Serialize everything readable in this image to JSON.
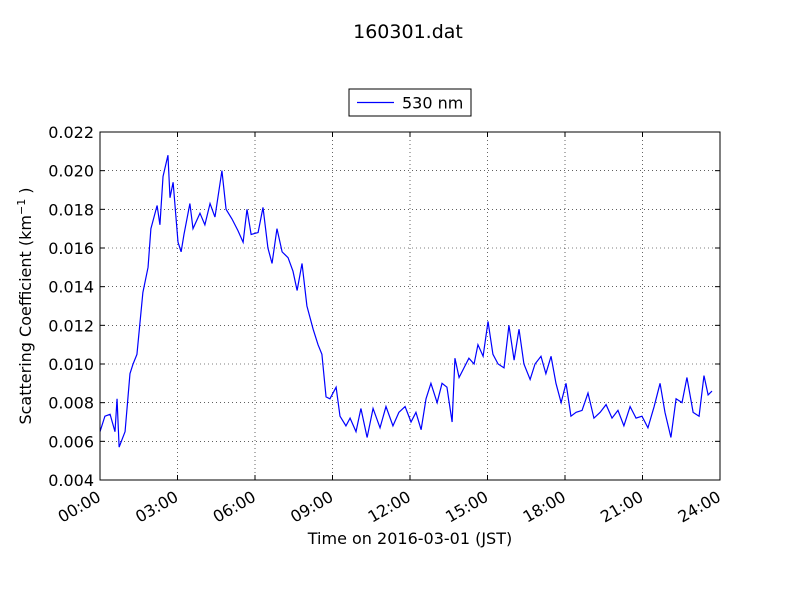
{
  "chart_data": {
    "type": "line",
    "title": "160301.dat",
    "xlabel": "Time on 2016-03-01 (JST)",
    "ylabel": {
      "text": "Scattering Coefficient (km",
      "superscript": "−1",
      "end": " )"
    },
    "x": [
      0,
      0.19,
      0.39,
      0.58,
      0.66,
      0.74,
      0.97,
      1.16,
      1.28,
      1.43,
      1.66,
      1.86,
      1.97,
      2.21,
      2.32,
      2.44,
      2.63,
      2.71,
      2.83,
      3.02,
      3.14,
      3.25,
      3.48,
      3.6,
      3.87,
      4.06,
      4.26,
      4.45,
      4.72,
      4.88,
      5.11,
      5.34,
      5.54,
      5.69,
      5.85,
      6.12,
      6.31,
      6.5,
      6.66,
      6.85,
      7.05,
      7.28,
      7.47,
      7.63,
      7.82,
      8.01,
      8.25,
      8.44,
      8.59,
      8.75,
      8.9,
      9.14,
      9.29,
      9.52,
      9.68,
      9.91,
      10.1,
      10.34,
      10.57,
      10.84,
      11.07,
      11.34,
      11.57,
      11.81,
      12.04,
      12.23,
      12.43,
      12.62,
      12.81,
      13.05,
      13.24,
      13.43,
      13.63,
      13.74,
      13.9,
      14.09,
      14.28,
      14.48,
      14.63,
      14.83,
      15.02,
      15.21,
      15.41,
      15.64,
      15.83,
      16.03,
      16.22,
      16.41,
      16.65,
      16.84,
      17.07,
      17.26,
      17.46,
      17.65,
      17.85,
      18.04,
      18.23,
      18.43,
      18.66,
      18.89,
      19.12,
      19.36,
      19.59,
      19.82,
      20.05,
      20.28,
      20.52,
      20.75,
      20.98,
      21.21,
      21.45,
      21.68,
      21.87,
      22.1,
      22.3,
      22.53,
      22.72,
      22.96,
      23.19,
      23.38,
      23.54,
      23.69
    ],
    "series": [
      {
        "name": "530 nm",
        "color": "#0000ff",
        "values": [
          0.0065,
          0.0073,
          0.0074,
          0.0065,
          0.0082,
          0.0057,
          0.0065,
          0.0095,
          0.01,
          0.0105,
          0.0137,
          0.015,
          0.017,
          0.0182,
          0.0172,
          0.0197,
          0.0208,
          0.0186,
          0.0194,
          0.0163,
          0.0158,
          0.0167,
          0.0183,
          0.017,
          0.0178,
          0.0172,
          0.0183,
          0.0176,
          0.02,
          0.018,
          0.0175,
          0.0169,
          0.0163,
          0.018,
          0.0167,
          0.0168,
          0.0181,
          0.016,
          0.0152,
          0.017,
          0.0158,
          0.0155,
          0.0148,
          0.0138,
          0.0152,
          0.013,
          0.0118,
          0.011,
          0.0105,
          0.0083,
          0.0082,
          0.0088,
          0.0073,
          0.0068,
          0.0072,
          0.0065,
          0.0077,
          0.0062,
          0.0077,
          0.0067,
          0.0078,
          0.0068,
          0.0075,
          0.0078,
          0.007,
          0.0075,
          0.0066,
          0.0082,
          0.009,
          0.008,
          0.009,
          0.0088,
          0.007,
          0.0103,
          0.0093,
          0.0098,
          0.0103,
          0.01,
          0.011,
          0.0104,
          0.0122,
          0.0105,
          0.01,
          0.0098,
          0.012,
          0.0102,
          0.0118,
          0.01,
          0.0092,
          0.01,
          0.0104,
          0.0095,
          0.0104,
          0.009,
          0.008,
          0.009,
          0.0073,
          0.0075,
          0.0076,
          0.0085,
          0.0072,
          0.0075,
          0.0079,
          0.0072,
          0.0076,
          0.0068,
          0.0078,
          0.0072,
          0.0073,
          0.0067,
          0.0078,
          0.009,
          0.0075,
          0.0062,
          0.0082,
          0.008,
          0.0093,
          0.0075,
          0.0073,
          0.0094,
          0.0084,
          0.0086
        ]
      }
    ],
    "xlim": [
      0,
      24
    ],
    "xticks": [
      {
        "value": 0,
        "label": "00:00"
      },
      {
        "value": 3,
        "label": "03:00"
      },
      {
        "value": 6,
        "label": "06:00"
      },
      {
        "value": 9,
        "label": "09:00"
      },
      {
        "value": 12,
        "label": "12:00"
      },
      {
        "value": 15,
        "label": "15:00"
      },
      {
        "value": 18,
        "label": "18:00"
      },
      {
        "value": 21,
        "label": "21:00"
      },
      {
        "value": 24,
        "label": "24:00"
      }
    ],
    "ylim": [
      0.004,
      0.022
    ],
    "yticks": [
      0.004,
      0.006,
      0.008,
      {
        "value": 0.01,
        "label": "0.010"
      },
      0.012,
      0.014,
      0.016,
      0.018,
      {
        "value": 0.02,
        "label": "0.020"
      },
      0.022
    ],
    "grid": true,
    "legend": "upper center"
  }
}
